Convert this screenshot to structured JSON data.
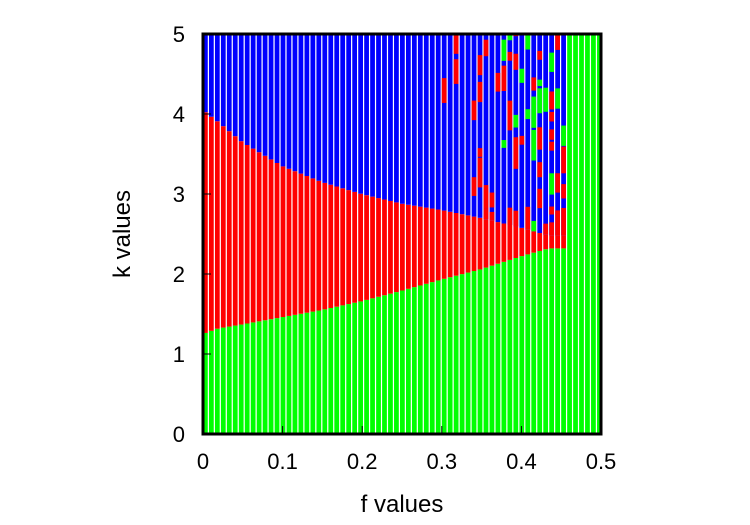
{
  "chart_data": {
    "type": "heatmap",
    "title": "",
    "xlabel": "f values",
    "ylabel": "k values",
    "xlim": [
      0,
      0.5
    ],
    "ylim": [
      0,
      5
    ],
    "xticks": [
      "0",
      "0.1",
      "0.2",
      "0.3",
      "0.4",
      "0.5"
    ],
    "yticks": [
      "0",
      "1",
      "2",
      "3",
      "4",
      "5"
    ],
    "colors": {
      "green": "#00ff00",
      "red": "#ff0000",
      "blue": "#0000ff"
    },
    "grid": false,
    "legend": "none",
    "f_step": 0.0075,
    "green_red_boundary": {
      "f": [
        0.0,
        0.02,
        0.05,
        0.1,
        0.15,
        0.2,
        0.25,
        0.3,
        0.35,
        0.4,
        0.435
      ],
      "k": [
        1.25,
        1.32,
        1.37,
        1.46,
        1.55,
        1.66,
        1.79,
        1.93,
        2.06,
        2.22,
        2.32
      ]
    },
    "red_blue_boundary": {
      "f": [
        0.0,
        0.02,
        0.05,
        0.1,
        0.15,
        0.2,
        0.25,
        0.3,
        0.35,
        0.4,
        0.435
      ],
      "k": [
        4.05,
        3.9,
        3.65,
        3.35,
        3.15,
        3.0,
        2.88,
        2.8,
        2.7,
        2.58,
        2.48
      ]
    },
    "chaotic_region_f": [
      0.3,
      0.46
    ],
    "all_green_above_f": 0.46
  }
}
